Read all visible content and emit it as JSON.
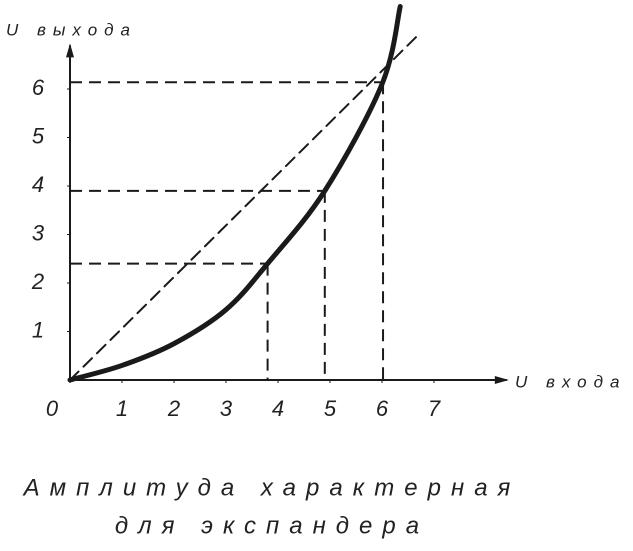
{
  "chart_data": {
    "type": "line",
    "y_label": "U выхода",
    "x_label": "U входа",
    "caption": [
      "Амплитуда характерная",
      "для экспандера"
    ],
    "xlim": [
      0,
      8.4
    ],
    "ylim": [
      0,
      6.9
    ],
    "xticks": [
      0,
      1,
      2,
      3,
      4,
      5,
      6,
      7
    ],
    "yticks": [
      1,
      2,
      3,
      4,
      5,
      6
    ],
    "series": [
      {
        "color": "#1a1a1a",
        "width": 5,
        "dashed": false,
        "x": [
          0,
          1,
          2,
          3,
          3.8,
          4.9,
          6,
          6.35
        ],
        "values": [
          0,
          0.3,
          0.75,
          1.45,
          2.4,
          3.9,
          6.1,
          7.7
        ]
      },
      {
        "color": "#1a1a1a",
        "width": 2,
        "dashed": true,
        "x": [
          0,
          6.73
        ],
        "values": [
          0,
          7.15
        ]
      }
    ],
    "guides": [
      {
        "x": 3.8,
        "y": 2.4
      },
      {
        "x": 4.9,
        "y": 3.9
      },
      {
        "x": 6.02,
        "y": 6.14
      }
    ]
  }
}
